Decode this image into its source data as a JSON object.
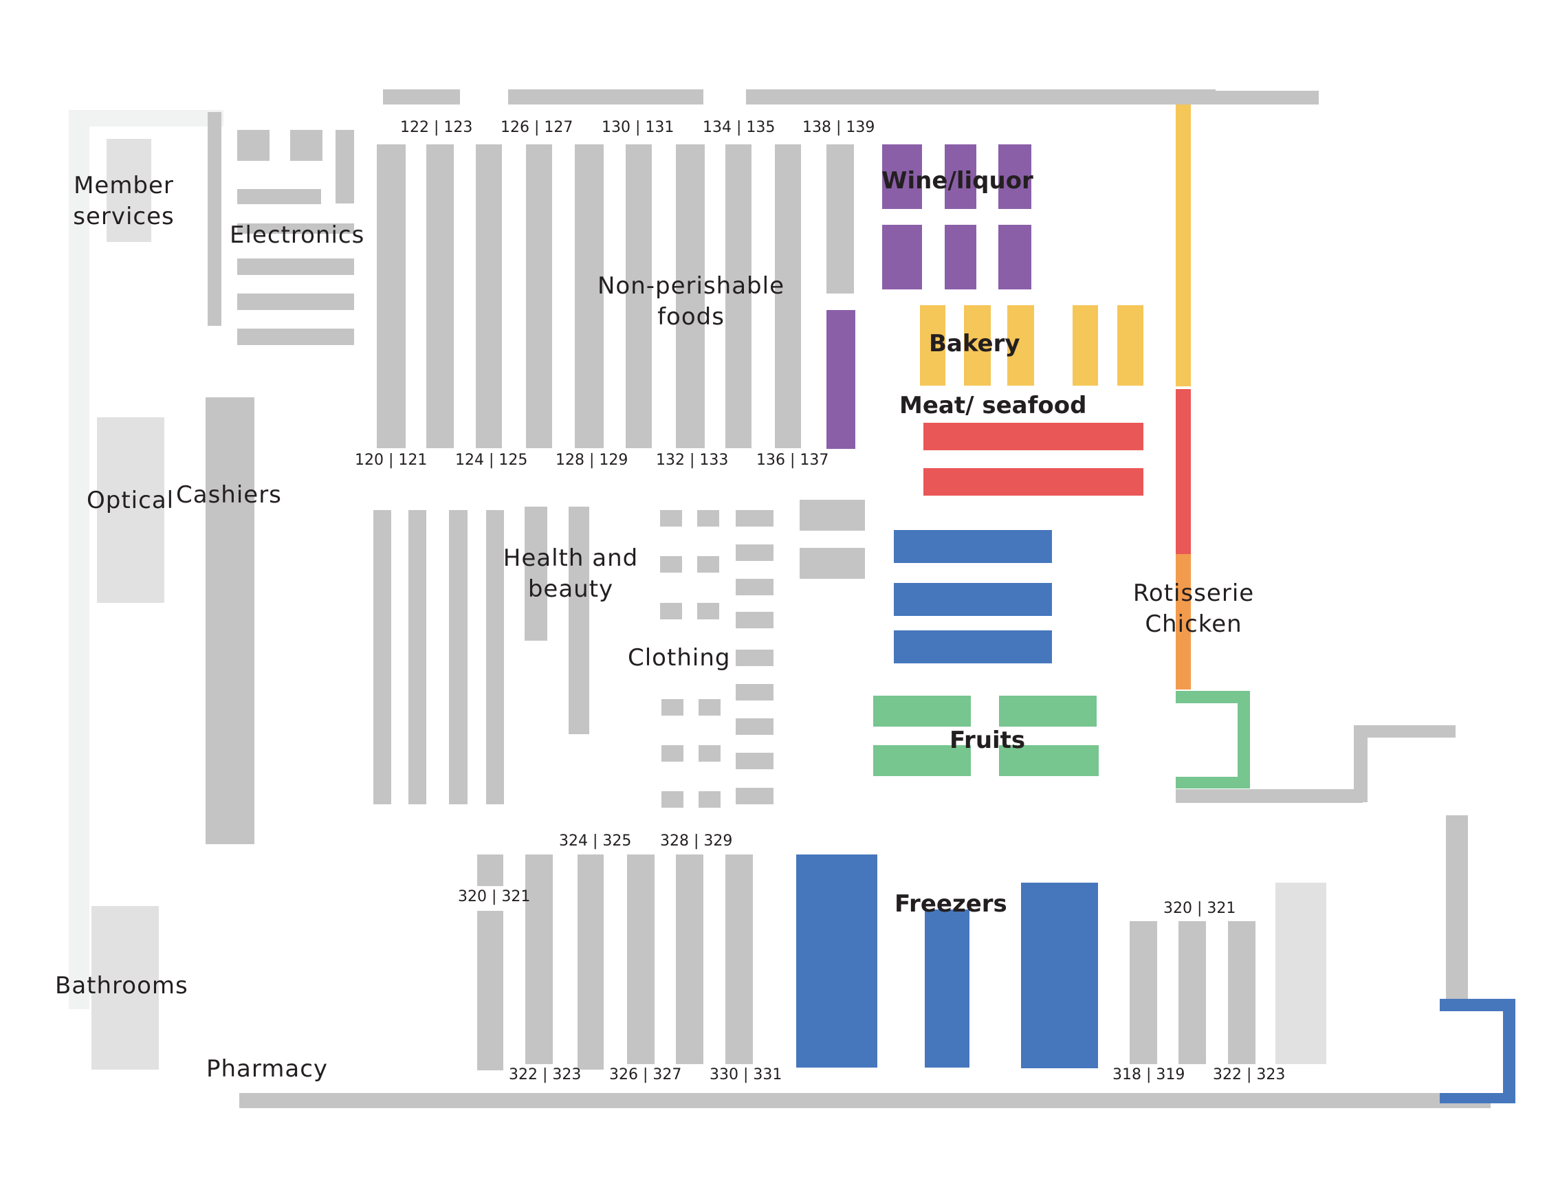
{
  "colors": {
    "shelf": "#c4c4c4",
    "service_area": "#e1e1e1",
    "outer_wall": "#f1f2f2",
    "wine_liquor": "#8b5fa8",
    "bakery": "#f5c658",
    "meat_seafood": "#ea5757",
    "dairy_freezers": "#4677bd",
    "fruits": "#77c58f",
    "rotisserie": "#f39b4d",
    "text": "#231f20"
  },
  "sections": {
    "member_services": "Member\nservices",
    "electronics": "Electronics",
    "non_perishable": "Non-perishable\nfoods",
    "wine_liquor": "Wine/liquor",
    "bakery": "Bakery",
    "meat_seafood": "Meat/ seafood",
    "optical": "Optical",
    "cashiers": "Cashiers",
    "health_beauty": "Health and\nbeauty",
    "clothing": "Clothing",
    "rotisserie": "Rotisserie\nChicken",
    "fruits": "Fruits",
    "freezers": "Freezers",
    "bathrooms": "Bathrooms",
    "pharmacy": "Pharmacy"
  },
  "aisles": {
    "top_row": [
      "122 | 123",
      "126 | 127",
      "130 | 131",
      "134 | 135",
      "138 | 139"
    ],
    "mid_row": [
      "120 | 121",
      "124 | 125",
      "128 | 129",
      "132 | 133",
      "136 | 137"
    ],
    "freezer_top": [
      "324 | 325",
      "328 | 329"
    ],
    "freezer_left": "320 | 321",
    "freezer_bottom": [
      "322 | 323",
      "326 | 327",
      "330 | 331"
    ],
    "right_top": "320 | 321",
    "right_bottom": [
      "318 | 319",
      "322 | 323"
    ]
  }
}
